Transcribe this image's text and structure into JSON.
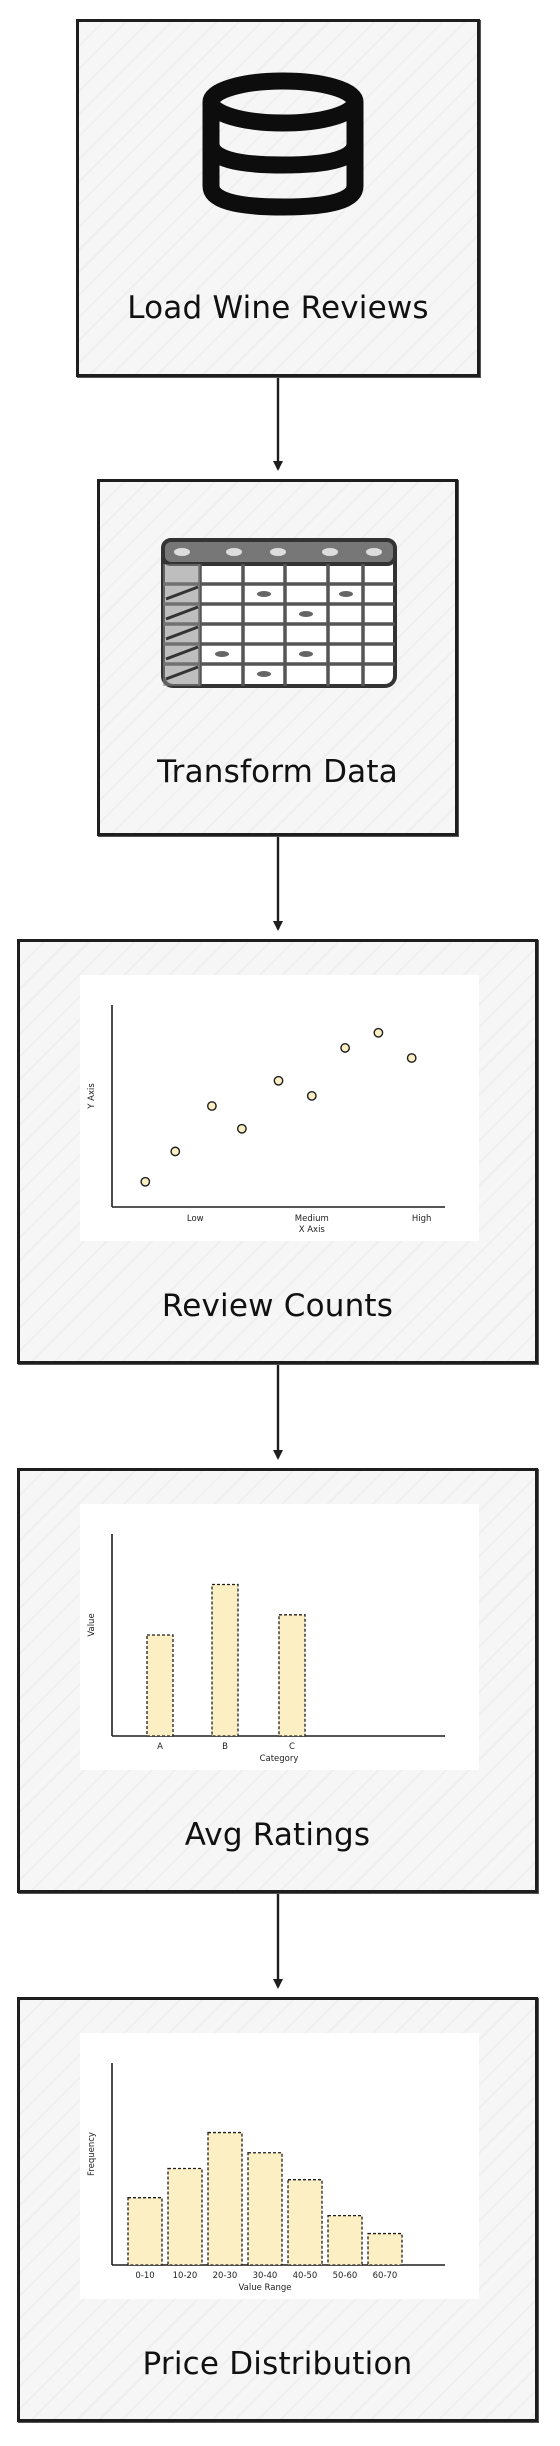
{
  "steps": [
    {
      "label": "Load Wine Reviews",
      "icon": "database-icon"
    },
    {
      "label": "Transform Data",
      "icon": "table-icon"
    },
    {
      "label": "Review Counts",
      "icon": "scatter-chart-icon"
    },
    {
      "label": "Avg Ratings",
      "icon": "bar-chart-icon"
    },
    {
      "label": "Price Distribution",
      "icon": "histogram-icon"
    }
  ],
  "chart_data": [
    {
      "type": "scatter",
      "xlabel": "X Axis",
      "ylabel": "Y Axis",
      "x_tick_labels": [
        "Low",
        "Medium",
        "High"
      ],
      "points": [
        {
          "x": 1.0,
          "y": 1.0
        },
        {
          "x": 1.9,
          "y": 2.2
        },
        {
          "x": 3.0,
          "y": 4.0
        },
        {
          "x": 3.9,
          "y": 3.1
        },
        {
          "x": 5.0,
          "y": 5.0
        },
        {
          "x": 6.0,
          "y": 4.4
        },
        {
          "x": 7.0,
          "y": 6.3
        },
        {
          "x": 8.0,
          "y": 6.9
        },
        {
          "x": 9.0,
          "y": 5.9
        }
      ],
      "xlim": [
        0,
        10
      ],
      "ylim": [
        0,
        8
      ],
      "point_color": "#fcefc4",
      "grid": false
    },
    {
      "type": "bar",
      "xlabel": "Category",
      "ylabel": "Value",
      "categories": [
        "A",
        "B",
        "C"
      ],
      "values": [
        5,
        7.5,
        6
      ],
      "ylim": [
        0,
        10
      ],
      "bar_color": "#fcefc4",
      "grid": false
    },
    {
      "type": "bar",
      "xlabel": "Value Range",
      "ylabel": "Frequency",
      "categories": [
        "0-10",
        "10-20",
        "20-30",
        "30-40",
        "40-50",
        "50-60",
        "60-70"
      ],
      "values": [
        3,
        4.3,
        5.9,
        5,
        3.8,
        2.2,
        1.4
      ],
      "ylim": [
        0,
        9
      ],
      "bar_color": "#fcefc4",
      "grid": false
    }
  ]
}
